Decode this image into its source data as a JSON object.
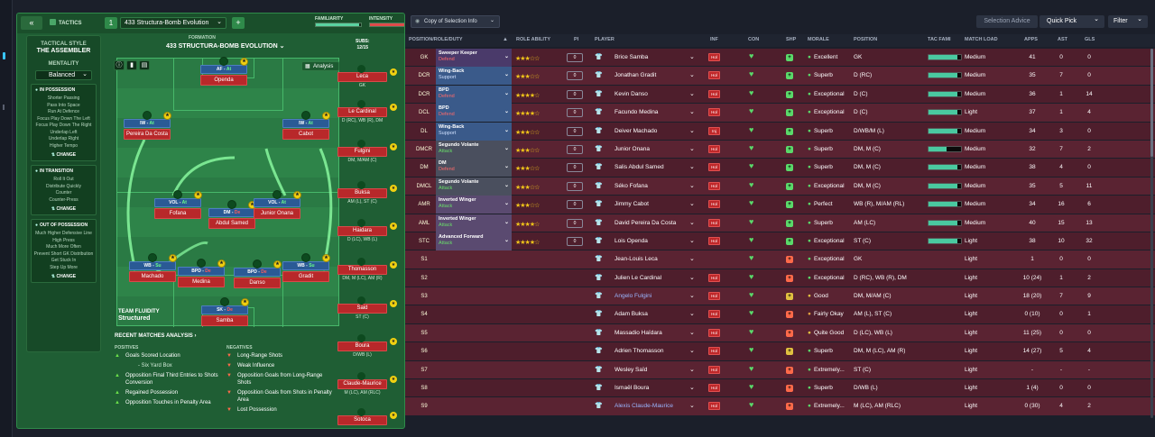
{
  "tactics_header": {
    "back": "«",
    "label": "TACTICS",
    "slot": "1",
    "tactic_name": "433 Structura-Bomb Evolution",
    "add": "+",
    "familiarity_label": "FAMILIARITY",
    "intensity_label": "INTENSITY",
    "familiarity_value": 0.95,
    "intensity_value": 0.9
  },
  "style": {
    "heading": "TACTICAL STYLE",
    "name": "THE ASSEMBLER",
    "mentality_label": "MENTALITY",
    "mentality": "Balanced",
    "in_possession": {
      "title": "IN POSSESSION",
      "items": [
        "Shorter Passing",
        "Pass Into Space",
        "Run At Defence",
        "Focus Play Down The Left",
        "Focus Play Down The Right",
        "Underlap Left",
        "Underlap Right",
        "Higher Tempo"
      ],
      "change": "CHANGE"
    },
    "in_transition": {
      "title": "IN TRANSITION",
      "items": [
        "Roll It Out",
        "Distribute Quickly",
        "Counter",
        "Counter-Press"
      ],
      "change": "CHANGE"
    },
    "out_of_possession": {
      "title": "OUT OF POSSESSION",
      "items": [
        "Much Higher Defensive Line",
        "High Press",
        "Much More Often",
        "Prevent Short GK Distribution",
        "Get Stuck In",
        "Step Up More"
      ],
      "change": "CHANGE"
    }
  },
  "formation": {
    "label": "FORMATION",
    "title": "433 STRUCTURA-BOMB EVOLUTION",
    "subs_label": "SUBS:",
    "subs_value": "12/15",
    "analysis": "Analysis",
    "fluidity_label": "TEAM FLUIDITY",
    "fluidity": "Structured"
  },
  "pitch_players": [
    {
      "role": "AF",
      "duty": "At",
      "name": "Openda",
      "duty_color": "green"
    },
    {
      "role": "IW",
      "duty": "At",
      "name": "Pereira Da Costa",
      "duty_color": "green"
    },
    {
      "role": "IW",
      "duty": "At",
      "name": "Cabot",
      "duty_color": "green"
    },
    {
      "role": "VOL",
      "duty": "At",
      "name": "Fofana",
      "duty_color": "green"
    },
    {
      "role": "DM",
      "duty": "De",
      "name": "Abdul Samed",
      "duty_color": "red"
    },
    {
      "role": "VOL",
      "duty": "At",
      "name": "Junior Onana",
      "duty_color": "green"
    },
    {
      "role": "WB",
      "duty": "Su",
      "name": "Machado",
      "duty_color": "green"
    },
    {
      "role": "BPD",
      "duty": "De",
      "name": "Medina",
      "duty_color": "red"
    },
    {
      "role": "BPD",
      "duty": "De",
      "name": "Danso",
      "duty_color": "red"
    },
    {
      "role": "WB",
      "duty": "Su",
      "name": "Gradit",
      "duty_color": "green"
    },
    {
      "role": "SK",
      "duty": "De",
      "name": "Samba",
      "duty_color": "red"
    }
  ],
  "bench": [
    {
      "name": "Leca",
      "pos": "GK"
    },
    {
      "name": "Le Cardinal",
      "pos": "D (RC), WB (R), DM"
    },
    {
      "name": "Fulgini",
      "pos": "DM, M/AM (C)"
    },
    {
      "name": "Buksa",
      "pos": "AM (L), ST (C)"
    },
    {
      "name": "Haidara",
      "pos": "D (LC), WB (L)"
    },
    {
      "name": "Thomasson",
      "pos": "DM, M (LC), AM (R)"
    },
    {
      "name": "Said",
      "pos": "ST (C)"
    },
    {
      "name": "Boura",
      "pos": "D/WB (L)"
    },
    {
      "name": "Claude-Maurice",
      "pos": "M (LC), AM (RLC)"
    },
    {
      "name": "Sotoca",
      "pos": ""
    }
  ],
  "analysis": {
    "title": "RECENT MATCHES ANALYSIS ›",
    "positives_label": "POSITIVES",
    "negatives_label": "NEGATIVES",
    "positives": [
      "Goals Scored Location",
      "Opposition Final Third Entries to Shots Conversion",
      "Regained Possession",
      "Opposition Touches in Penalty Area"
    ],
    "positives_sub": "- Six Yard Box",
    "negatives": [
      "Long-Range Shots",
      "Weak Influence",
      "Opposition Goals from Long-Range Shots",
      "Opposition Goals from Shots in Penalty Area",
      "Lost Possession"
    ]
  },
  "squad_toolbar": {
    "copy": "Copy of Selection Info",
    "selection_advice": "Selection Advice",
    "quick_pick": "Quick Pick",
    "filter": "Filter"
  },
  "columns": {
    "position": "POSITION/ROLE/DUTY",
    "ra": "ROLE ABILITY",
    "pi": "PI",
    "player": "PLAYER",
    "inf": "INF",
    "con": "CON",
    "shp": "SHP",
    "morale": "MORALE",
    "pos": "POSITION",
    "tf": "TAC FAMI",
    "ml": "MATCH LOAD",
    "apps": "APPS",
    "ast": "AST",
    "gls": "GLS"
  },
  "rows": [
    {
      "code": "GK",
      "role": "Sweeper Keeper",
      "duty": "Defend",
      "duty_color": "#ff6a6a",
      "stars": "★★★☆☆",
      "pi": "0",
      "player": "Brice Samba",
      "morale": "Excellent",
      "morale_color": "#5ad96a",
      "pos": "GK",
      "tf": 0.9,
      "load": "Medium",
      "apps": "41",
      "ast": "0",
      "gls": "0",
      "ship": "#5ad96a",
      "inf": "Hol"
    },
    {
      "code": "DCR",
      "role": "Wing-Back",
      "duty": "Support",
      "duty_color": "#cfe0ff",
      "stars": "★★★☆☆",
      "pi": "0",
      "player": "Jonathan Gradit",
      "morale": "Superb",
      "morale_color": "#5ad96a",
      "pos": "D (RC)",
      "tf": 0.9,
      "load": "Medium",
      "apps": "35",
      "ast": "7",
      "gls": "0",
      "ship": "#5ad96a",
      "inf": "Hol"
    },
    {
      "code": "DCR",
      "role": "BPD",
      "duty": "Defend",
      "duty_color": "#ff6a6a",
      "stars": "★★★★☆",
      "pi": "0",
      "player": "Kevin Danso",
      "morale": "Exceptional",
      "morale_color": "#5ad96a",
      "pos": "D (C)",
      "tf": 0.9,
      "load": "Medium",
      "apps": "36",
      "ast": "1",
      "gls": "14",
      "ship": "#5ad96a",
      "inf": "Hol"
    },
    {
      "code": "DCL",
      "role": "BPD",
      "duty": "Defend",
      "duty_color": "#ff6a6a",
      "stars": "★★★★☆",
      "pi": "0",
      "player": "Facundo Medina",
      "morale": "Exceptional",
      "morale_color": "#5ad96a",
      "pos": "D (C)",
      "tf": 0.9,
      "load": "Light",
      "apps": "37",
      "ast": "1",
      "gls": "4",
      "ship": "#5ad96a",
      "inf": "Hol"
    },
    {
      "code": "DL",
      "role": "Wing-Back",
      "duty": "Support",
      "duty_color": "#cfe0ff",
      "stars": "★★★☆☆",
      "pi": "0",
      "player": "Deiver Machado",
      "morale": "Superb",
      "morale_color": "#5ad96a",
      "pos": "D/WB/M (L)",
      "tf": 0.9,
      "load": "Medium",
      "apps": "34",
      "ast": "3",
      "gls": "0",
      "ship": "#5ad96a",
      "inf": "Inj"
    },
    {
      "code": "DMCR",
      "role": "Segundo Volante",
      "duty": "Attack",
      "duty_color": "#6adf6a",
      "stars": "★★★☆☆",
      "pi": "0",
      "player": "Junior Onana",
      "morale": "Superb",
      "morale_color": "#5ad96a",
      "pos": "DM, M (C)",
      "tf": 0.55,
      "load": "Medium",
      "apps": "32",
      "ast": "7",
      "gls": "2",
      "ship": "#5ad96a",
      "inf": "Hol"
    },
    {
      "code": "DM",
      "role": "DM",
      "duty": "Defend",
      "duty_color": "#ff6a6a",
      "stars": "★★★☆☆",
      "pi": "0",
      "player": "Salis Abdul Samed",
      "morale": "Superb",
      "morale_color": "#5ad96a",
      "pos": "DM, M (C)",
      "tf": 0.9,
      "load": "Medium",
      "apps": "38",
      "ast": "4",
      "gls": "0",
      "ship": "#5ad96a",
      "inf": "Hol"
    },
    {
      "code": "DMCL",
      "role": "Segundo Volante",
      "duty": "Attack",
      "duty_color": "#6adf6a",
      "stars": "★★★☆☆",
      "pi": "0",
      "player": "Séko Fofana",
      "morale": "Exceptional",
      "morale_color": "#5ad96a",
      "pos": "DM, M (C)",
      "tf": 0.9,
      "load": "Medium",
      "apps": "35",
      "ast": "5",
      "gls": "11",
      "ship": "#5ad96a",
      "inf": "Hol"
    },
    {
      "code": "AMR",
      "role": "Inverted Winger",
      "duty": "Attack",
      "duty_color": "#6adf6a",
      "stars": "★★★☆☆",
      "pi": "0",
      "player": "Jimmy Cabot",
      "morale": "Perfect",
      "morale_color": "#5ad96a",
      "pos": "WB (R), M/AM (RL)",
      "tf": 0.9,
      "load": "Medium",
      "apps": "34",
      "ast": "16",
      "gls": "6",
      "ship": "#5ad96a",
      "inf": "Hol"
    },
    {
      "code": "AML",
      "role": "Inverted Winger",
      "duty": "Attack",
      "duty_color": "#6adf6a",
      "stars": "★★★★☆",
      "pi": "0",
      "player": "David Pereira Da Costa",
      "morale": "Superb",
      "morale_color": "#5ad96a",
      "pos": "AM (LC)",
      "tf": 0.9,
      "load": "Medium",
      "apps": "40",
      "ast": "15",
      "gls": "13",
      "ship": "#5ad96a",
      "inf": "Hol"
    },
    {
      "code": "STC",
      "role": "Advanced Forward",
      "duty": "Attack",
      "duty_color": "#6adf6a",
      "stars": "★★★★☆",
      "pi": "0",
      "player": "Lois Openda",
      "morale": "Exceptional",
      "morale_color": "#5ad96a",
      "pos": "ST (C)",
      "tf": 0.9,
      "load": "Light",
      "apps": "38",
      "ast": "10",
      "gls": "32",
      "ship": "#5ad96a",
      "inf": "Hol"
    },
    {
      "code": "S1",
      "role": "",
      "duty": "",
      "duty_color": "#fff",
      "stars": "",
      "pi": "",
      "player": "Jean-Louis Leca",
      "morale": "Exceptional",
      "morale_color": "#5ad96a",
      "pos": "GK",
      "tf": 0,
      "load": "Light",
      "apps": "1",
      "ast": "0",
      "gls": "0",
      "ship": "#ff6a4a",
      "inf": ""
    },
    {
      "code": "S2",
      "role": "",
      "duty": "",
      "duty_color": "#fff",
      "stars": "",
      "pi": "",
      "player": "Julien Le Cardinal",
      "morale": "Exceptional",
      "morale_color": "#5ad96a",
      "pos": "D (RC), WB (R), DM",
      "tf": 0,
      "load": "Light",
      "apps": "10 (24)",
      "ast": "1",
      "gls": "2",
      "ship": "#ff6a4a",
      "inf": "Hol"
    },
    {
      "code": "S3",
      "role": "",
      "duty": "",
      "duty_color": "#fff",
      "stars": "",
      "pi": "",
      "player": "Angelo Fulgini",
      "morale": "Good",
      "morale_color": "#e0c040",
      "pos": "DM, M/AM (C)",
      "tf": 0,
      "load": "Light",
      "apps": "18 (20)",
      "ast": "7",
      "gls": "9",
      "ship": "#e0c040",
      "inf": "Hol"
    },
    {
      "code": "S4",
      "role": "",
      "duty": "",
      "duty_color": "#fff",
      "stars": "",
      "pi": "",
      "player": "Adam Buksa",
      "morale": "Fairly Okay",
      "morale_color": "#e0a040",
      "pos": "AM (L), ST (C)",
      "tf": 0,
      "load": "Light",
      "apps": "0 (10)",
      "ast": "0",
      "gls": "1",
      "ship": "#ff6a4a",
      "inf": "Hol"
    },
    {
      "code": "S5",
      "role": "",
      "duty": "",
      "duty_color": "#fff",
      "stars": "",
      "pi": "",
      "player": "Massadio Haïdara",
      "morale": "Quite Good",
      "morale_color": "#e0c040",
      "pos": "D (LC), WB (L)",
      "tf": 0,
      "load": "Light",
      "apps": "11 (25)",
      "ast": "0",
      "gls": "0",
      "ship": "#ff6a4a",
      "inf": "Hol"
    },
    {
      "code": "S6",
      "role": "",
      "duty": "",
      "duty_color": "#fff",
      "stars": "",
      "pi": "",
      "player": "Adrien Thomasson",
      "morale": "Superb",
      "morale_color": "#5ad96a",
      "pos": "DM, M (LC), AM (R)",
      "tf": 0,
      "load": "Light",
      "apps": "14 (27)",
      "ast": "5",
      "gls": "4",
      "ship": "#e0c040",
      "inf": "Hol"
    },
    {
      "code": "S7",
      "role": "",
      "duty": "",
      "duty_color": "#fff",
      "stars": "",
      "pi": "",
      "player": "Wesley Saïd",
      "morale": "Extremely...",
      "morale_color": "#5ad96a",
      "pos": "ST (C)",
      "tf": 0,
      "load": "Light",
      "apps": "-",
      "ast": "-",
      "gls": "-",
      "ship": "#ff6a4a",
      "inf": "Hol"
    },
    {
      "code": "S8",
      "role": "",
      "duty": "",
      "duty_color": "#fff",
      "stars": "",
      "pi": "",
      "player": "Ismaël Boura",
      "morale": "Superb",
      "morale_color": "#5ad96a",
      "pos": "D/WB (L)",
      "tf": 0,
      "load": "Light",
      "apps": "1 (4)",
      "ast": "0",
      "gls": "0",
      "ship": "#ff6a4a",
      "inf": "Hol"
    },
    {
      "code": "S9",
      "role": "",
      "duty": "",
      "duty_color": "#fff",
      "stars": "",
      "pi": "",
      "player": "Alexis Claude-Maurice",
      "morale": "Extremely...",
      "morale_color": "#5ad96a",
      "pos": "M (LC), AM (RLC)",
      "tf": 0,
      "load": "Light",
      "apps": "0 (30)",
      "ast": "4",
      "gls": "2",
      "ship": "#ff6a4a",
      "inf": "Hol"
    }
  ]
}
